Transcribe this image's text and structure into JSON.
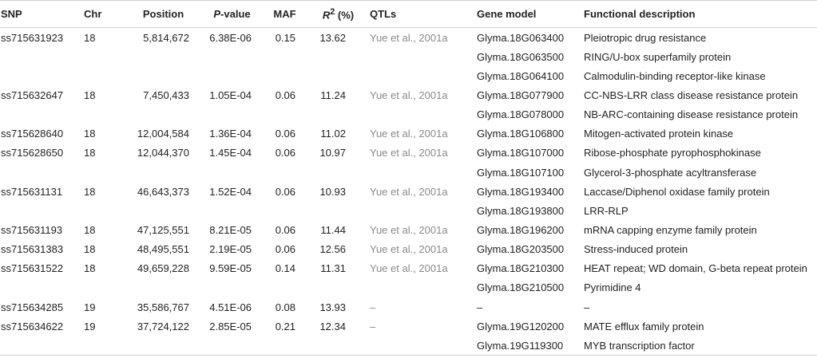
{
  "headers": {
    "snp": "SNP",
    "chr": "Chr",
    "position": "Position",
    "pvalue_italic": "P",
    "pvalue_rest": "-value",
    "maf": "MAF",
    "r2_italic": "R",
    "r2_sup": "2",
    "r2_rest": " (%)",
    "qtls": "QTLs",
    "gene_model": "Gene model",
    "functional_description": "Functional description"
  },
  "rows": [
    {
      "snp": "ss715631923",
      "chr": "18",
      "position": "5,814,672",
      "pvalue": "6.38E-06",
      "maf": "0.15",
      "r2": "13.62",
      "qtls": "Yue et al., 2001a",
      "gene": "Glyma.18G063400",
      "func": "Pleiotropic drug resistance"
    },
    {
      "snp": "",
      "chr": "",
      "position": "",
      "pvalue": "",
      "maf": "",
      "r2": "",
      "qtls": "",
      "gene": "Glyma.18G063500",
      "func": "RING/U-box superfamily protein"
    },
    {
      "snp": "",
      "chr": "",
      "position": "",
      "pvalue": "",
      "maf": "",
      "r2": "",
      "qtls": "",
      "gene": "Glyma.18G064100",
      "func": "Calmodulin-binding receptor-like kinase"
    },
    {
      "snp": "ss715632647",
      "chr": "18",
      "position": "7,450,433",
      "pvalue": "1.05E-04",
      "maf": "0.06",
      "r2": "11.24",
      "qtls": "Yue et al., 2001a",
      "gene": "Glyma.18G077900",
      "func": "CC-NBS-LRR class disease resistance protein"
    },
    {
      "snp": "",
      "chr": "",
      "position": "",
      "pvalue": "",
      "maf": "",
      "r2": "",
      "qtls": "",
      "gene": "Glyma.18G078000",
      "func": "NB-ARC-containing disease resistance protein"
    },
    {
      "snp": "ss715628640",
      "chr": "18",
      "position": "12,004,584",
      "pvalue": "1.36E-04",
      "maf": "0.06",
      "r2": "11.02",
      "qtls": "Yue et al., 2001a",
      "gene": "Glyma.18G106800",
      "func": "Mitogen-activated protein kinase"
    },
    {
      "snp": "ss715628650",
      "chr": "18",
      "position": "12,044,370",
      "pvalue": "1.45E-04",
      "maf": "0.06",
      "r2": "10.97",
      "qtls": "Yue et al., 2001a",
      "gene": "Glyma.18G107000",
      "func": "Ribose-phosphate pyrophosphokinase"
    },
    {
      "snp": "",
      "chr": "",
      "position": "",
      "pvalue": "",
      "maf": "",
      "r2": "",
      "qtls": "",
      "gene": "Glyma.18G107100",
      "func": "Glycerol-3-phosphate acyltransferase"
    },
    {
      "snp": "ss715631131",
      "chr": "18",
      "position": "46,643,373",
      "pvalue": "1.52E-04",
      "maf": "0.06",
      "r2": "10.93",
      "qtls": "Yue et al., 2001a",
      "gene": "Glyma.18G193400",
      "func": "Laccase/Diphenol oxidase family protein"
    },
    {
      "snp": "",
      "chr": "",
      "position": "",
      "pvalue": "",
      "maf": "",
      "r2": "",
      "qtls": "",
      "gene": "Glyma.18G193800",
      "func": "LRR-RLP"
    },
    {
      "snp": "ss715631193",
      "chr": "18",
      "position": "47,125,551",
      "pvalue": "8.21E-05",
      "maf": "0.06",
      "r2": "11.44",
      "qtls": "Yue et al., 2001a",
      "gene": "Glyma.18G196200",
      "func": "mRNA capping enzyme family protein"
    },
    {
      "snp": "ss715631383",
      "chr": "18",
      "position": "48,495,551",
      "pvalue": "2.19E-05",
      "maf": "0.06",
      "r2": "12.56",
      "qtls": "Yue et al., 2001a",
      "gene": "Glyma.18G203500",
      "func": "Stress-induced protein"
    },
    {
      "snp": "ss715631522",
      "chr": "18",
      "position": "49,659,228",
      "pvalue": "9.59E-05",
      "maf": "0.14",
      "r2": "11.31",
      "qtls": "Yue et al., 2001a",
      "gene": "Glyma.18G210300",
      "func": "HEAT repeat; WD domain, G-beta repeat protein"
    },
    {
      "snp": "",
      "chr": "",
      "position": "",
      "pvalue": "",
      "maf": "",
      "r2": "",
      "qtls": "",
      "gene": "Glyma.18G210500",
      "func": "Pyrimidine 4"
    },
    {
      "snp": "ss715634285",
      "chr": "19",
      "position": "35,586,767",
      "pvalue": "4.51E-06",
      "maf": "0.08",
      "r2": "13.93",
      "qtls": "–",
      "gene": "–",
      "func": "–"
    },
    {
      "snp": "ss715634622",
      "chr": "19",
      "position": "37,724,122",
      "pvalue": "2.85E-05",
      "maf": "0.21",
      "r2": "12.34",
      "qtls": "–",
      "gene": "Glyma.19G120200",
      "func": "MATE efflux family protein"
    },
    {
      "snp": "",
      "chr": "",
      "position": "",
      "pvalue": "",
      "maf": "",
      "r2": "",
      "qtls": "",
      "gene": "Glyma.19G119300",
      "func": "MYB transcription factor"
    }
  ]
}
